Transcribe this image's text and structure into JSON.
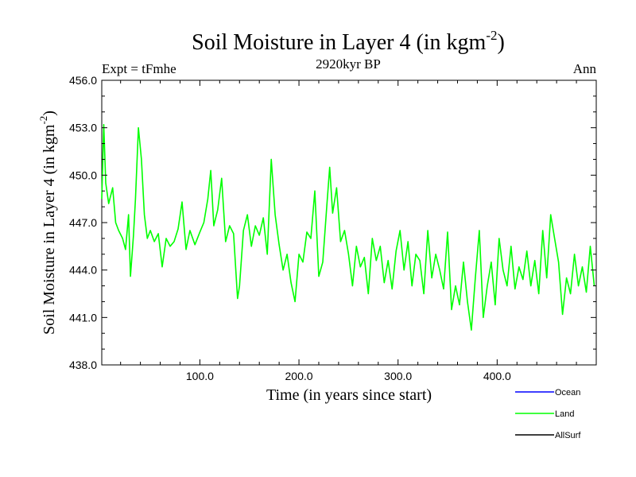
{
  "chart_data": {
    "type": "line",
    "title": "Soil Moisture in Layer 4 (in kgm",
    "title_sup": "-2",
    "title_close": ")",
    "subtitle_left": "Expt = tFmhe",
    "subtitle_center": "2920kyr BP",
    "subtitle_right": "Ann",
    "xlabel": "Time (in years since start)",
    "ylabel": "Soil Moisture in Layer 4 (in kgm",
    "ylabel_sup": "-2",
    "ylabel_close": ")",
    "xlim": [
      1,
      500
    ],
    "ylim": [
      438.0,
      456.0
    ],
    "xticks": [
      100,
      200,
      300,
      400
    ],
    "xtick_labels": [
      "100.0",
      "200.0",
      "300.0",
      "400.0"
    ],
    "yticks": [
      438,
      441,
      444,
      447,
      450,
      453,
      456
    ],
    "ytick_labels": [
      "438.0",
      "441.0",
      "444.0",
      "447.0",
      "450.0",
      "453.0",
      "456.0"
    ],
    "legend": [
      {
        "name": "Ocean",
        "color": "#0000ff"
      },
      {
        "name": "Land",
        "color": "#00ff00"
      },
      {
        "name": "AllSurf",
        "color": "#000000"
      }
    ],
    "series": [
      {
        "name": "Land",
        "color": "#00ff00",
        "x": [
          1,
          3,
          5,
          8,
          12,
          15,
          18,
          22,
          25,
          28,
          30,
          33,
          35,
          38,
          41,
          44,
          47,
          50,
          54,
          58,
          62,
          66,
          70,
          74,
          78,
          82,
          86,
          90,
          95,
          100,
          104,
          108,
          111,
          114,
          118,
          122,
          126,
          130,
          134,
          138,
          140,
          144,
          148,
          152,
          156,
          160,
          164,
          168,
          172,
          176,
          180,
          184,
          188,
          192,
          196,
          200,
          204,
          208,
          212,
          216,
          220,
          224,
          228,
          231,
          234,
          238,
          242,
          246,
          250,
          254,
          258,
          262,
          266,
          270,
          274,
          278,
          282,
          286,
          290,
          294,
          298,
          302,
          306,
          310,
          314,
          318,
          322,
          326,
          330,
          334,
          338,
          342,
          346,
          350,
          354,
          358,
          362,
          366,
          370,
          374,
          378,
          382,
          386,
          390,
          394,
          398,
          402,
          406,
          410,
          414,
          418,
          422,
          426,
          430,
          434,
          438,
          442,
          446,
          450,
          454,
          458,
          462,
          466,
          470,
          474,
          478,
          482,
          486,
          490,
          494,
          498
        ],
        "values": [
          448.5,
          453.2,
          449.5,
          448.2,
          449.2,
          447.0,
          446.5,
          446.0,
          445.3,
          447.5,
          443.6,
          446.2,
          448.5,
          453.0,
          451.0,
          447.5,
          446.0,
          446.5,
          445.8,
          446.3,
          444.2,
          446.0,
          445.5,
          445.8,
          446.6,
          448.3,
          445.3,
          446.5,
          445.6,
          446.4,
          447.0,
          448.5,
          450.3,
          446.8,
          447.8,
          449.8,
          445.8,
          446.8,
          446.3,
          442.2,
          443.0,
          446.5,
          447.5,
          445.5,
          446.8,
          446.2,
          447.3,
          445.0,
          451.0,
          447.5,
          445.6,
          444.0,
          445.0,
          443.2,
          442.0,
          445.0,
          444.5,
          446.4,
          446.0,
          449.0,
          443.6,
          444.5,
          448.0,
          450.5,
          447.6,
          449.2,
          445.8,
          446.5,
          445.0,
          443.0,
          445.5,
          444.2,
          444.8,
          442.5,
          446.0,
          444.6,
          445.5,
          443.2,
          444.6,
          442.8,
          445.2,
          446.5,
          444.0,
          445.8,
          443.0,
          445.0,
          444.6,
          442.5,
          446.5,
          443.5,
          445.0,
          444.0,
          442.8,
          446.4,
          441.5,
          443.0,
          441.8,
          444.5,
          442.0,
          440.2,
          443.5,
          446.5,
          441.0,
          443.0,
          444.5,
          441.8,
          446.0,
          444.0,
          443.0,
          445.5,
          442.8,
          444.2,
          443.4,
          445.2,
          443.0,
          444.6,
          442.5,
          446.5,
          443.5,
          447.5,
          446.0,
          444.5,
          441.2,
          443.5,
          442.5,
          445.0,
          443.0,
          444.2,
          442.6,
          445.5,
          443.0
        ]
      }
    ]
  }
}
